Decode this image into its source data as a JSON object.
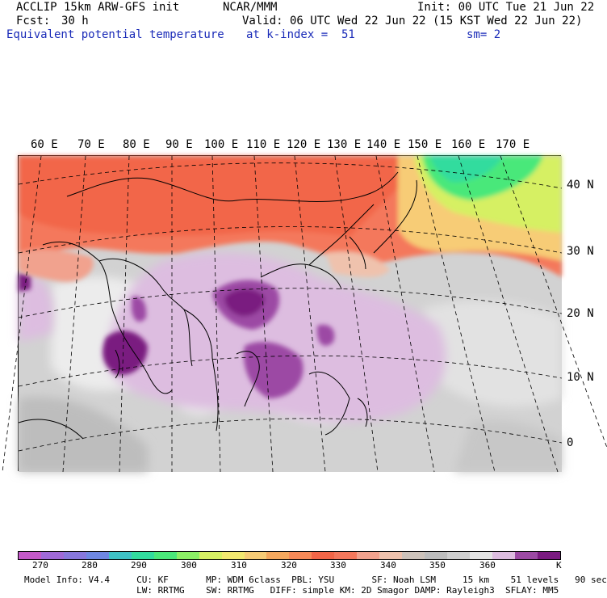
{
  "header": {
    "model_line": "ACCLIP 15km ARW-GFS init",
    "org": "NCAR/MMM",
    "init": "Init: 00 UTC Tue 21 Jun 22",
    "fcst_label": "Fcst:",
    "fcst_value": "30 h",
    "valid": "Valid: 06 UTC Wed 22 Jun 22 (15 KST Wed 22 Jun 22)",
    "field": "Equivalent potential temperature",
    "level": "at k-index =  51",
    "smooth": "sm= 2"
  },
  "map": {
    "lon_labels": [
      "60 E",
      "70 E",
      "80 E",
      "90 E",
      "100 E",
      "110 E",
      "120 E",
      "130 E",
      "140 E",
      "150 E",
      "160 E",
      "170 E"
    ],
    "lat_labels": [
      "40 N",
      "30 N",
      "20 N",
      "10 N",
      "0"
    ]
  },
  "colorbar": {
    "colors": [
      "#c45ac9",
      "#a06ad8",
      "#8878dd",
      "#6f88e3",
      "#3fc2c6",
      "#32dc9e",
      "#4ae87a",
      "#8cf066",
      "#d6f064",
      "#f2e870",
      "#f7cc76",
      "#f5a85e",
      "#f78a58",
      "#f26648",
      "#f4785c",
      "#f1a28e",
      "#efc2ad",
      "#cdc3bb",
      "#bdbdbd",
      "#cfcfcf",
      "#e4e4e4",
      "#ddbde0",
      "#9c4aa4",
      "#7a1a80"
    ],
    "labels": [
      "270",
      "280",
      "290",
      "300",
      "310",
      "320",
      "330",
      "340",
      "350",
      "360"
    ],
    "unit": "K"
  },
  "footer": {
    "line1": "Model Info: V4.4     CU: KF       MP: WDM 6class  PBL: YSU       SF: Noah LSM     15 km    51 levels   90 sec",
    "line2": "                     LW: RRTMG    SW: RRTMG   DIFF: simple KM: 2D Smagor DAMP: Rayleigh3  SFLAY: MM5"
  }
}
